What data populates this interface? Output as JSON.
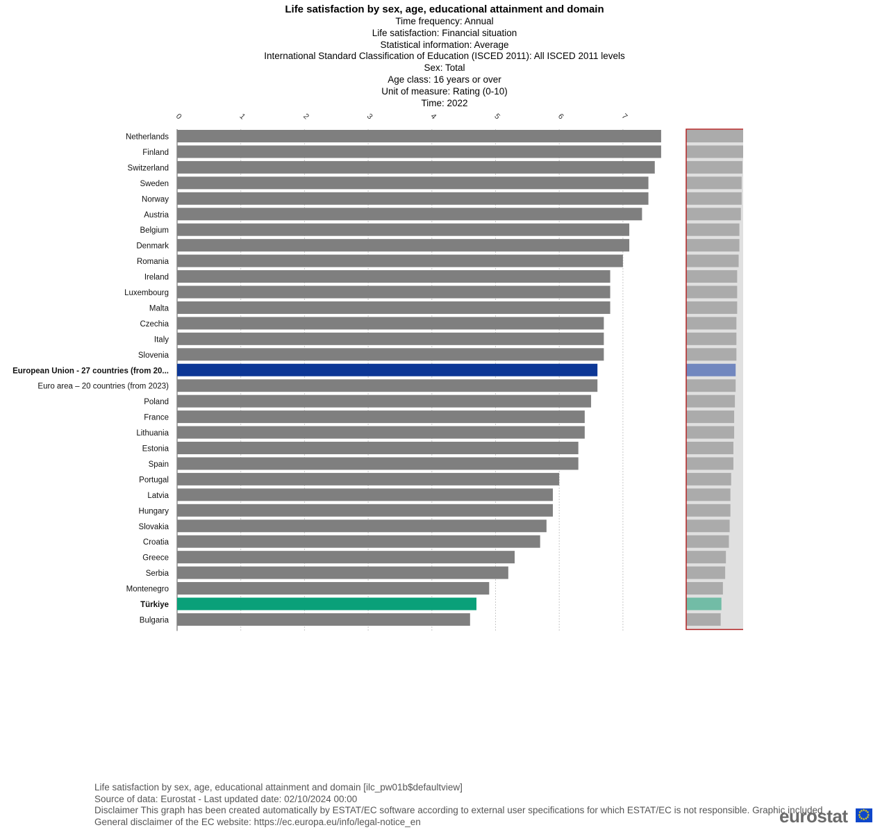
{
  "header": {
    "title": "Life satisfaction by sex, age, educational attainment and domain",
    "lines": [
      "Time frequency:  Annual",
      "Life satisfaction:  Financial situation",
      "Statistical information:  Average",
      "International Standard Classification of Education (ISCED 2011):  All ISCED 2011 levels",
      "Sex:  Total",
      "Age class:  16 years or over",
      "Unit of measure:  Rating (0-10)",
      "Time:  2022"
    ]
  },
  "chart_data": {
    "type": "bar",
    "orientation": "horizontal",
    "x_ticks": [
      "0",
      "1",
      "2",
      "3",
      "4",
      "5",
      "6",
      "7"
    ],
    "xlim": [
      0,
      8
    ],
    "grid": true,
    "categories": [
      "Netherlands",
      "Finland",
      "Switzerland",
      "Sweden",
      "Norway",
      "Austria",
      "Belgium",
      "Denmark",
      "Romania",
      "Ireland",
      "Luxembourg",
      "Malta",
      "Czechia",
      "Italy",
      "Slovenia",
      "European Union - 27 countries (from 20...",
      "Euro area – 20 countries (from 2023)",
      "Poland",
      "France",
      "Lithuania",
      "Estonia",
      "Spain",
      "Portugal",
      "Latvia",
      "Hungary",
      "Slovakia",
      "Croatia",
      "Greece",
      "Serbia",
      "Montenegro",
      "Türkiye",
      "Bulgaria"
    ],
    "values": [
      7.6,
      7.6,
      7.5,
      7.4,
      7.4,
      7.3,
      7.1,
      7.1,
      7.0,
      6.8,
      6.8,
      6.8,
      6.7,
      6.7,
      6.7,
      6.6,
      6.6,
      6.5,
      6.4,
      6.4,
      6.3,
      6.3,
      6.0,
      5.9,
      5.9,
      5.8,
      5.7,
      5.3,
      5.2,
      4.9,
      4.7,
      4.6
    ],
    "highlight": [
      {
        "category": "European Union - 27 countries (from 20...",
        "color": "#0c3796",
        "bold": true
      },
      {
        "category": "Türkiye",
        "color": "#0aa079",
        "bold": true
      }
    ],
    "bar_color": "#7f7f7f",
    "overview_color": "#ababab",
    "overview_highlight_colors": {
      "European Union - 27 countries (from 20...": "#7187bf",
      "Türkiye": "#72bca6"
    },
    "overview_bg": "#e0e0e0",
    "overview_border": "#b22222"
  },
  "footer": {
    "lines": [
      "Life satisfaction by sex, age, educational attainment and domain [ilc_pw01b$defaultview]",
      "Source of data: Eurostat - Last updated date: 02/10/2024 00:00",
      "Disclaimer This graph has been created automatically by ESTAT/EC software according to external user specifications for which ESTAT/EC is not responsible. Graphic included",
      "General disclaimer of the EC website: https://ec.europa.eu/info/legal-notice_en"
    ],
    "logo_text": "eurostat"
  }
}
